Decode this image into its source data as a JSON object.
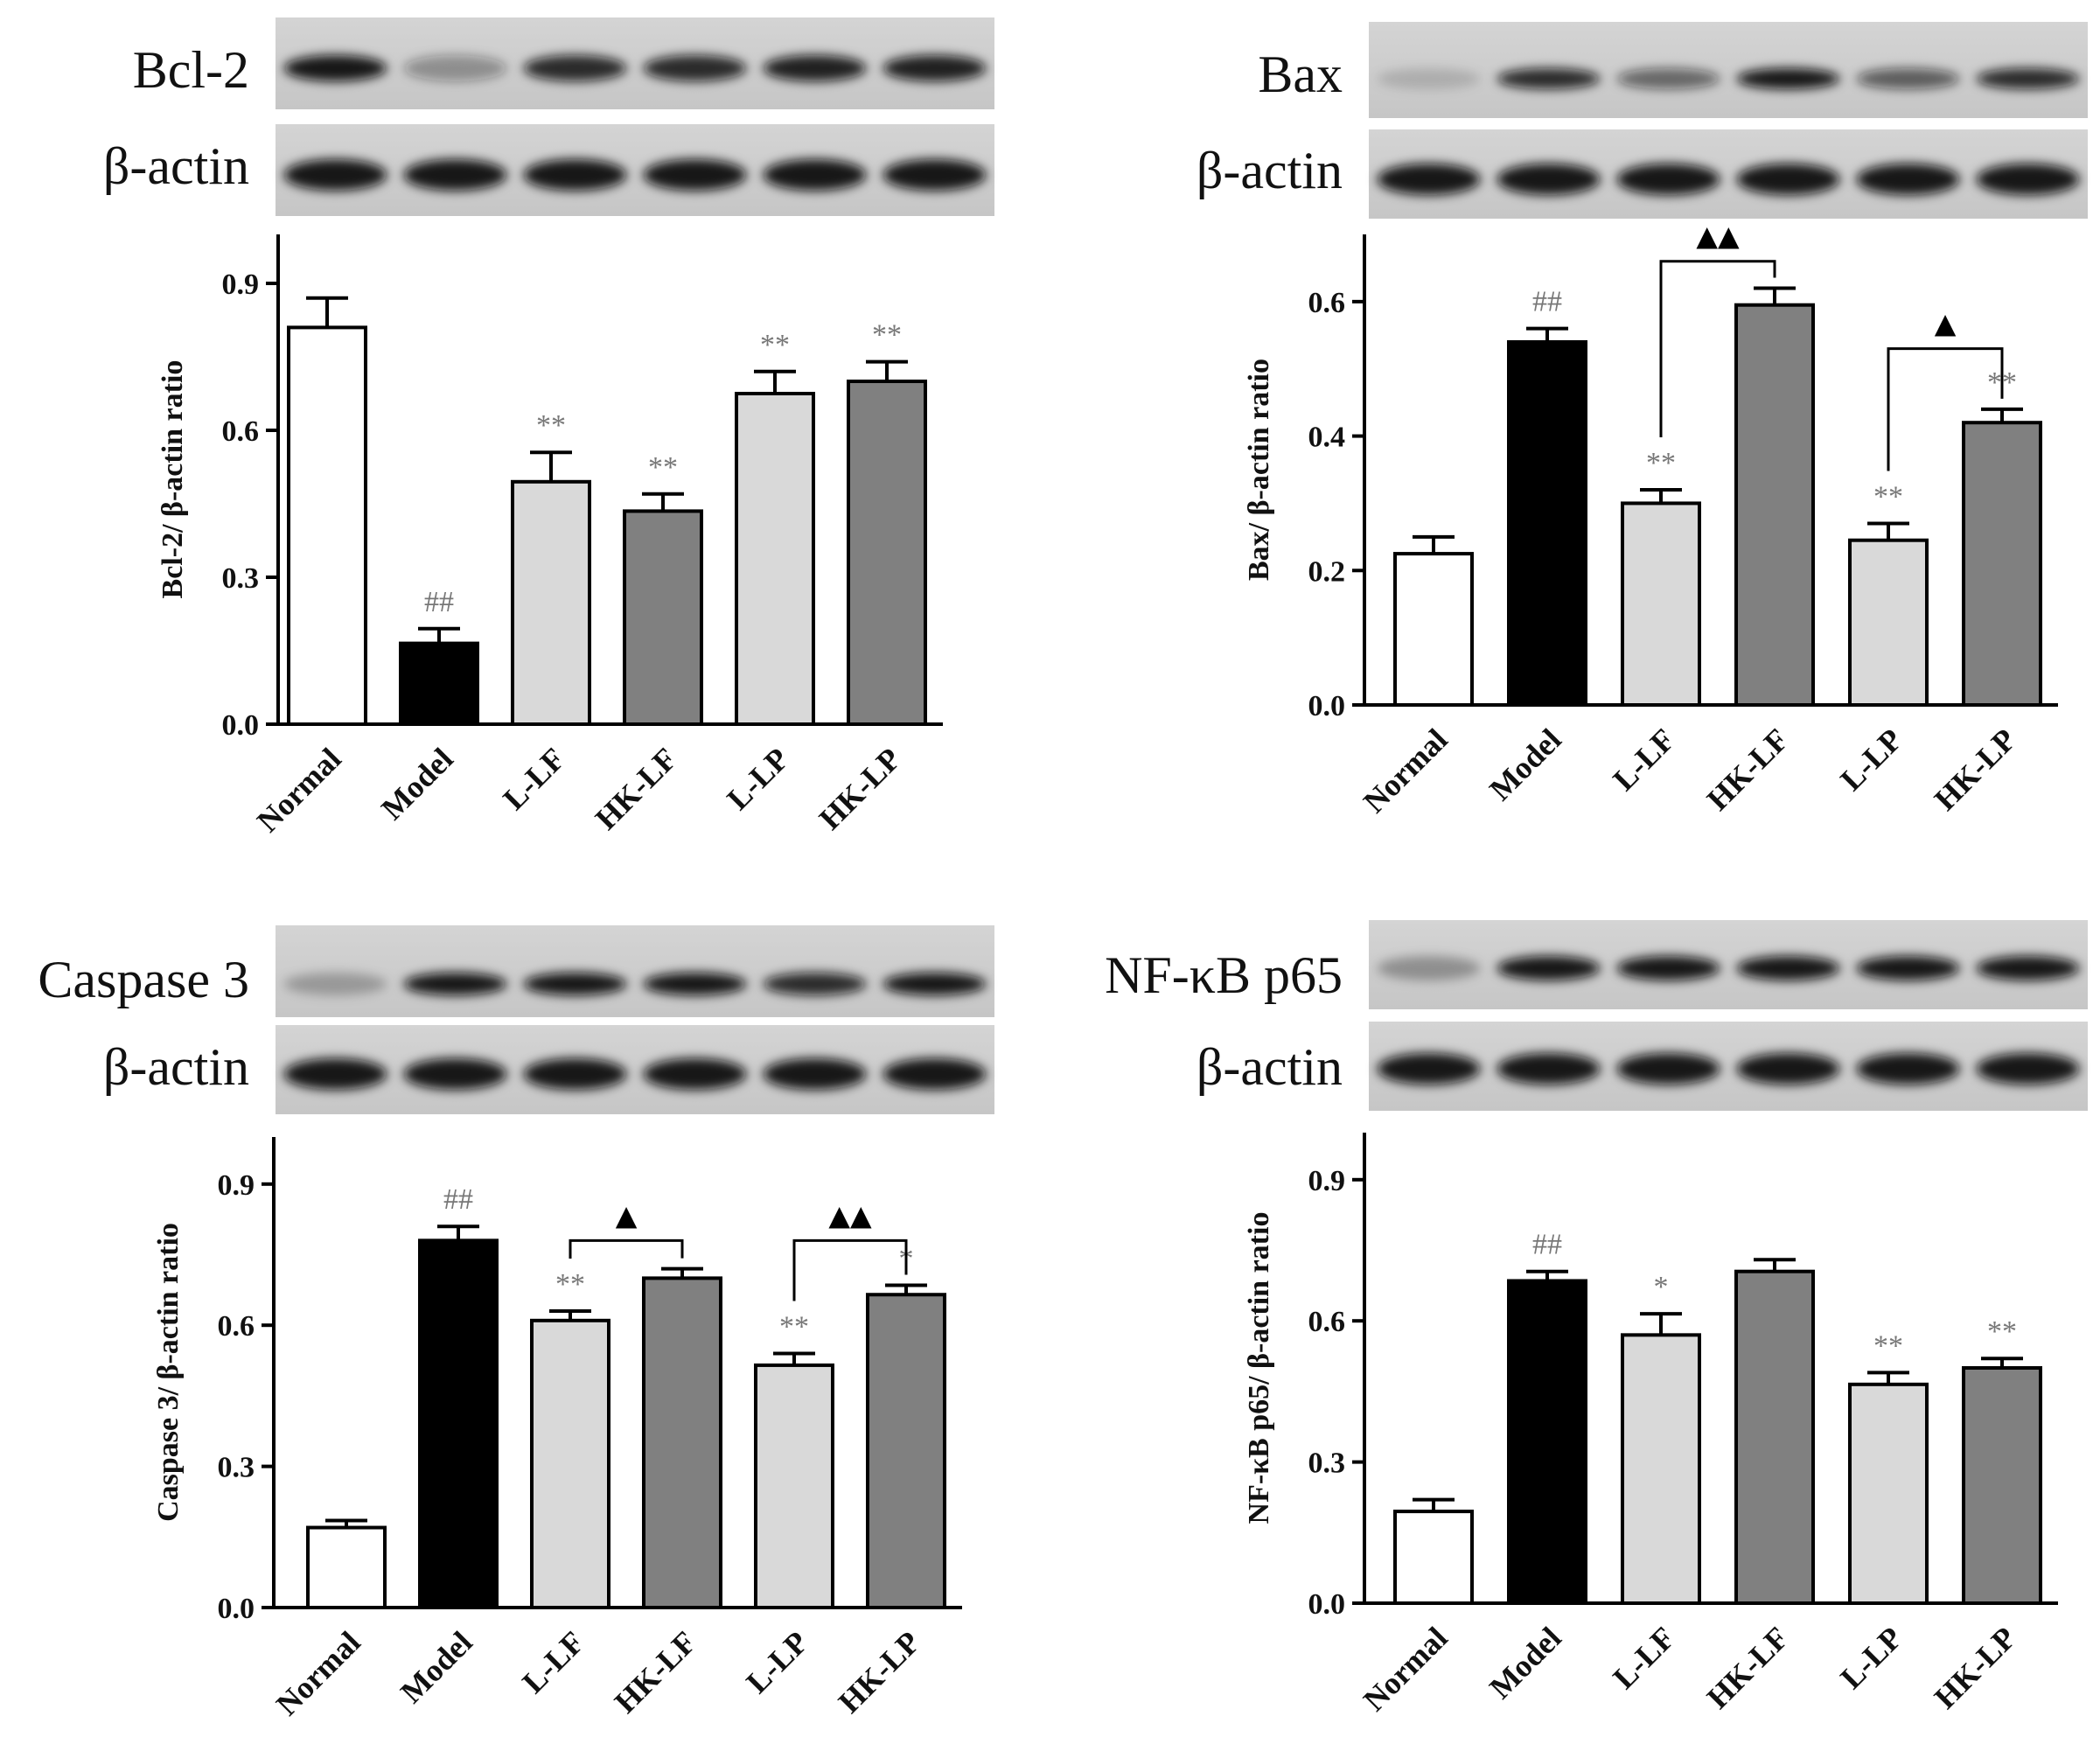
{
  "blot_labels": {
    "target": [
      "Bcl-2",
      "Bax",
      "Caspase 3",
      "NF-κB p65"
    ],
    "loading_control": "β-actin"
  },
  "chart_data": [
    {
      "type": "bar",
      "categories": [
        "Normal",
        "Model",
        "L-LF",
        "HK-LF",
        "L-LP",
        "HK-LP"
      ],
      "values": [
        0.81,
        0.165,
        0.495,
        0.435,
        0.675,
        0.7
      ],
      "errors": [
        0.06,
        0.03,
        0.06,
        0.035,
        0.045,
        0.04
      ],
      "bar_colors": [
        "#ffffff",
        "#000000",
        "#d9d9d9",
        "#808080",
        "#d9d9d9",
        "#808080"
      ],
      "ylabel": "Bcl-2/ β-actin ratio",
      "ylim": [
        0,
        1.0
      ],
      "yticks": [
        "0.0",
        "0.3",
        "0.6",
        "0.9"
      ],
      "ytick_values": [
        0,
        0.3,
        0.6,
        0.9
      ],
      "significance": [
        "",
        "##",
        "**",
        "**",
        "**",
        "**"
      ],
      "comparisons": []
    },
    {
      "type": "bar",
      "categories": [
        "Normal",
        "Model",
        "L-LF",
        "HK-LF",
        "L-LP",
        "HK-LP"
      ],
      "values": [
        0.225,
        0.54,
        0.3,
        0.595,
        0.245,
        0.42
      ],
      "errors": [
        0.025,
        0.02,
        0.02,
        0.025,
        0.025,
        0.02
      ],
      "bar_colors": [
        "#ffffff",
        "#000000",
        "#d9d9d9",
        "#808080",
        "#d9d9d9",
        "#808080"
      ],
      "ylabel": "Bax/ β-actin ratio",
      "ylim": [
        0,
        0.7
      ],
      "yticks": [
        "0.0",
        "0.2",
        "0.4",
        "0.6"
      ],
      "ytick_values": [
        0,
        0.2,
        0.4,
        0.6
      ],
      "significance": [
        "",
        "##",
        "**",
        "",
        "**",
        "**"
      ],
      "comparisons": [
        {
          "from": 2,
          "to": 3,
          "label": "▲▲",
          "level": 0.66
        },
        {
          "from": 4,
          "to": 5,
          "label": "▲",
          "level": 0.53
        }
      ]
    },
    {
      "type": "bar",
      "categories": [
        "Normal",
        "Model",
        "L-LF",
        "HK-LF",
        "L-LP",
        "HK-LP"
      ],
      "values": [
        0.17,
        0.78,
        0.61,
        0.7,
        0.515,
        0.665
      ],
      "errors": [
        0.015,
        0.03,
        0.02,
        0.02,
        0.025,
        0.02
      ],
      "bar_colors": [
        "#ffffff",
        "#000000",
        "#d9d9d9",
        "#808080",
        "#d9d9d9",
        "#808080"
      ],
      "ylabel": "Caspase 3/ β-actin ratio",
      "ylim": [
        0,
        1.0
      ],
      "yticks": [
        "0.0",
        "0.3",
        "0.6",
        "0.9"
      ],
      "ytick_values": [
        0,
        0.3,
        0.6,
        0.9
      ],
      "significance": [
        "",
        "##",
        "**",
        "",
        "**",
        "*"
      ],
      "comparisons": [
        {
          "from": 2,
          "to": 3,
          "label": "▲",
          "level": 0.78
        },
        {
          "from": 4,
          "to": 5,
          "label": "▲▲",
          "level": 0.78
        }
      ]
    },
    {
      "type": "bar",
      "categories": [
        "Normal",
        "Model",
        "L-LF",
        "HK-LF",
        "L-LP",
        "HK-LP"
      ],
      "values": [
        0.195,
        0.685,
        0.57,
        0.705,
        0.465,
        0.5
      ],
      "errors": [
        0.025,
        0.02,
        0.045,
        0.025,
        0.025,
        0.02
      ],
      "bar_colors": [
        "#ffffff",
        "#000000",
        "#d9d9d9",
        "#808080",
        "#d9d9d9",
        "#808080"
      ],
      "ylabel": "NF-κB p65/ β-actin ratio",
      "ylim": [
        0,
        1.0
      ],
      "yticks": [
        "0.0",
        "0.3",
        "0.6",
        "0.9"
      ],
      "ytick_values": [
        0,
        0.3,
        0.6,
        0.9
      ],
      "significance": [
        "",
        "##",
        "*",
        "",
        "**",
        "**"
      ],
      "comparisons": []
    }
  ]
}
